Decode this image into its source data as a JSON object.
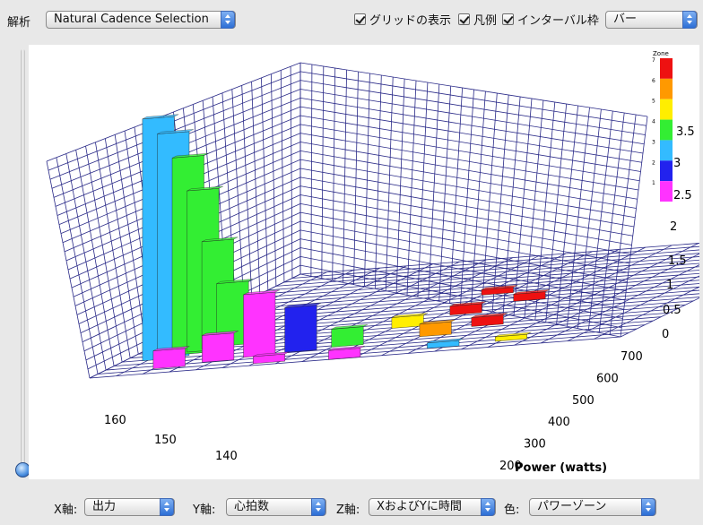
{
  "toolbar": {
    "analysis_label": "解析",
    "analysis_select": "Natural Cadence Selection",
    "grid_label": "グリッドの表示",
    "legend_label": "凡例",
    "interval_label": "インターバル枠",
    "mode_select": "バー"
  },
  "bottom": {
    "x_label": "X軸:",
    "x_value": "出力",
    "y_label": "Y軸:",
    "y_value": "心拍数",
    "z_label": "Z軸:",
    "z_value": "XおよびYに時間",
    "color_label": "色:",
    "color_value": "パワーゾーン"
  },
  "colors": {
    "zone1": "#ff33ff",
    "zone2": "#2222ee",
    "zone3": "#33bbff",
    "zone4": "#33ee33",
    "zone5": "#ffee00",
    "zone6": "#ff9900",
    "zone7": "#ee1111",
    "grid": "#2a2a88"
  },
  "chart_data": {
    "type": "bar",
    "xlabel": "Power (watts)",
    "x_ticks": [
      "200",
      "300",
      "400",
      "500",
      "600",
      "700"
    ],
    "y_ticks": [
      "140",
      "150",
      "160"
    ],
    "z_ticks": [
      "0",
      "0.5",
      "1",
      "1.5",
      "2",
      "2.5",
      "3",
      "3.5"
    ],
    "legend": {
      "title": "Zone",
      "levels": [
        "1",
        "2",
        "3",
        "4",
        "5",
        "6",
        "7"
      ],
      "placement": "top-right"
    }
  }
}
